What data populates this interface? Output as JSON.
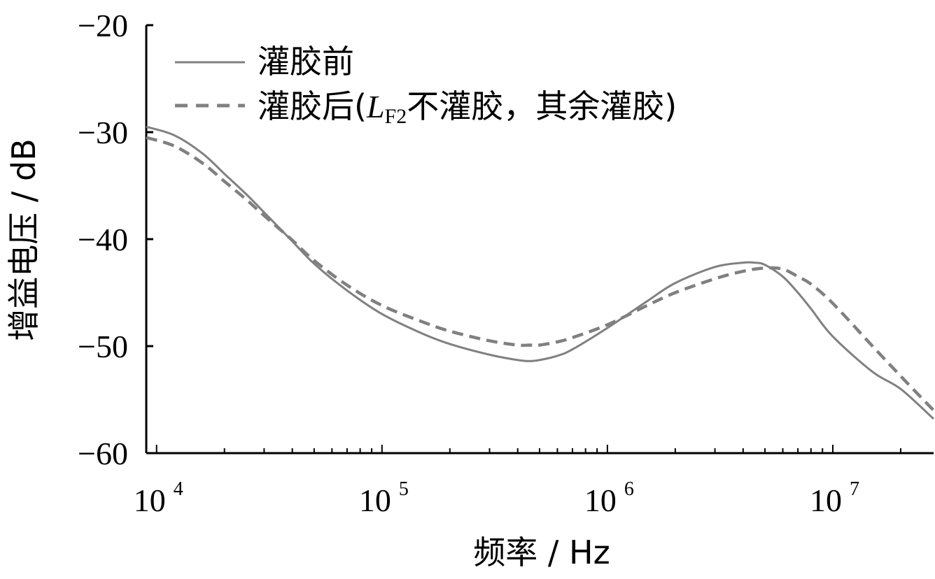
{
  "chart_data": {
    "type": "line",
    "x_scale": "log",
    "xlim": [
      9000,
      28000000
    ],
    "ylim": [
      -60,
      -20
    ],
    "xlabel": "频率 / Hz",
    "ylabel": "增益电压 / dB",
    "grid": false,
    "legend_position": "top-left",
    "x_ticks": [
      {
        "base": "10",
        "exp": "4"
      },
      {
        "base": "10",
        "exp": "5"
      },
      {
        "base": "10",
        "exp": "6"
      },
      {
        "base": "10",
        "exp": "7"
      }
    ],
    "y_ticks": [
      "−20",
      "−30",
      "−40",
      "−50",
      "−60"
    ],
    "y_tick_values": [
      -20,
      -30,
      -40,
      -50,
      -60
    ],
    "series": [
      {
        "name": "灌胶前",
        "style": "solid",
        "color": "#808080",
        "x": [
          9000,
          12000,
          16000,
          20000,
          25000,
          30000,
          40000,
          50000,
          70000,
          100000,
          150000,
          200000,
          300000,
          400000,
          450000,
          500000,
          600000,
          700000,
          1000000,
          1500000,
          2000000,
          3000000,
          4000000,
          4500000,
          5000000,
          6000000,
          7000000,
          8000000,
          10000000,
          15000000,
          20000000,
          28000000
        ],
        "y": [
          -29.5,
          -30.3,
          -32.0,
          -33.9,
          -35.8,
          -37.5,
          -40.2,
          -42.3,
          -44.8,
          -47.0,
          -48.8,
          -49.8,
          -50.8,
          -51.3,
          -51.4,
          -51.3,
          -50.9,
          -50.3,
          -48.3,
          -45.8,
          -44.1,
          -42.6,
          -42.2,
          -42.2,
          -42.4,
          -43.5,
          -45.0,
          -46.5,
          -49.1,
          -52.4,
          -54.0,
          -56.8
        ]
      },
      {
        "name": "灌胶后(LF2不灌胶，其余灌胶)",
        "style": "dashed",
        "color": "#808080",
        "x": [
          9000,
          12000,
          16000,
          20000,
          25000,
          30000,
          40000,
          50000,
          70000,
          100000,
          150000,
          200000,
          300000,
          400000,
          450000,
          500000,
          600000,
          700000,
          1000000,
          1500000,
          2000000,
          3000000,
          4000000,
          5000000,
          6000000,
          7000000,
          8000000,
          10000000,
          15000000,
          20000000,
          28000000
        ],
        "y": [
          -30.5,
          -31.3,
          -32.9,
          -34.6,
          -36.3,
          -37.8,
          -40.1,
          -42.0,
          -44.3,
          -46.2,
          -47.7,
          -48.6,
          -49.5,
          -49.9,
          -49.9,
          -49.9,
          -49.6,
          -49.2,
          -48.0,
          -46.2,
          -45.0,
          -43.7,
          -43.0,
          -42.7,
          -42.8,
          -43.5,
          -44.2,
          -46.0,
          -50.0,
          -52.8,
          -56.0
        ]
      }
    ],
    "legend": {
      "entry1": "灌胶前",
      "entry2_prefix": "灌胶后(",
      "entry2_var": "L",
      "entry2_sub": "F2",
      "entry2_middle": "不灌胶，其余灌胶",
      "entry2_suffix": ")"
    }
  }
}
